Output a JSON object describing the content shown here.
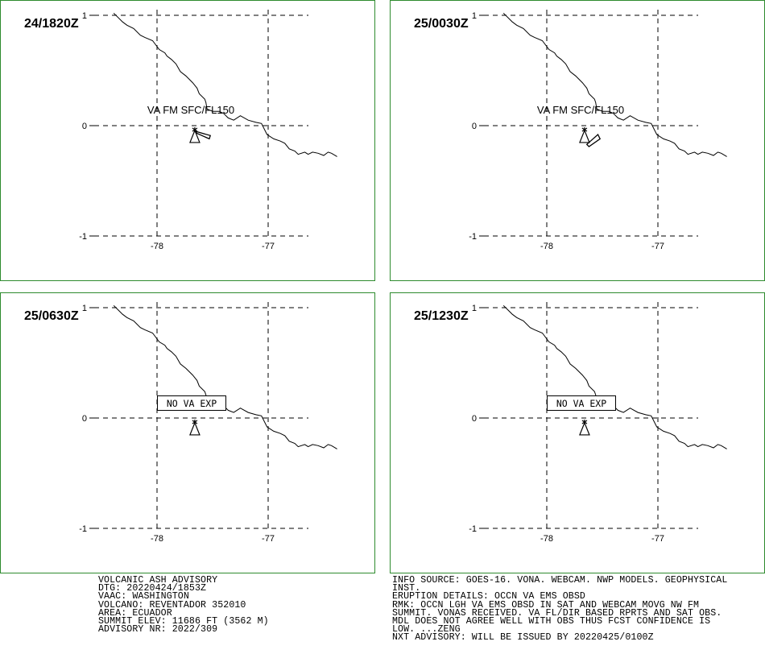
{
  "panels": [
    {
      "time_label": "24/1820Z",
      "mode": "cloud",
      "label": "VA FM SFC/FL150",
      "cloud": [
        [
          -77.66,
          -0.05
        ],
        [
          -77.52,
          -0.09
        ],
        [
          -77.53,
          -0.12
        ],
        [
          -77.64,
          -0.07
        ]
      ]
    },
    {
      "time_label": "25/0030Z",
      "mode": "cloud",
      "label": "VA FM SFC/FL150",
      "cloud": [
        [
          -77.64,
          -0.17
        ],
        [
          -77.54,
          -0.08
        ],
        [
          -77.52,
          -0.12
        ],
        [
          -77.62,
          -0.19
        ]
      ]
    },
    {
      "time_label": "25/0630Z",
      "mode": "box",
      "label": "NO VA EXP"
    },
    {
      "time_label": "25/1230Z",
      "mode": "box",
      "label": "NO VA EXP"
    }
  ],
  "axes": {
    "lat_ticks": [
      {
        "value": 1,
        "label": "1"
      },
      {
        "value": 0,
        "label": "0"
      },
      {
        "value": -1,
        "label": "-1"
      }
    ],
    "lon_ticks": [
      {
        "value": -78,
        "label": "-78"
      },
      {
        "value": -77,
        "label": "-77"
      }
    ],
    "lat_range": [
      -1,
      1
    ],
    "lon_range": [
      -78.0,
      -76.6
    ]
  },
  "volcano": {
    "lon": -77.66,
    "lat": -0.08
  },
  "coastline": [
    [
      -78.39,
      1.02
    ],
    [
      -78.31,
      0.94
    ],
    [
      -78.27,
      0.91
    ],
    [
      -78.21,
      0.88
    ],
    [
      -78.15,
      0.82
    ],
    [
      -78.11,
      0.8
    ],
    [
      -78.04,
      0.77
    ],
    [
      -77.98,
      0.69
    ],
    [
      -77.93,
      0.66
    ],
    [
      -77.91,
      0.63
    ],
    [
      -77.87,
      0.6
    ],
    [
      -77.83,
      0.56
    ],
    [
      -77.79,
      0.49
    ],
    [
      -77.74,
      0.45
    ],
    [
      -77.68,
      0.39
    ],
    [
      -77.64,
      0.34
    ],
    [
      -77.62,
      0.29
    ],
    [
      -77.57,
      0.24
    ],
    [
      -77.56,
      0.21
    ],
    [
      -77.55,
      0.15
    ],
    [
      -77.5,
      0.13
    ],
    [
      -77.44,
      0.13
    ],
    [
      -77.4,
      0.11
    ],
    [
      -77.36,
      0.07
    ],
    [
      -77.31,
      0.05
    ],
    [
      -77.25,
      0.09
    ],
    [
      -77.18,
      0.05
    ],
    [
      -77.11,
      0.03
    ],
    [
      -77.06,
      0.02
    ],
    [
      -77.01,
      -0.08
    ],
    [
      -76.95,
      -0.12
    ],
    [
      -76.89,
      -0.14
    ],
    [
      -76.85,
      -0.16
    ],
    [
      -76.81,
      -0.21
    ],
    [
      -76.76,
      -0.23
    ],
    [
      -76.73,
      -0.26
    ],
    [
      -76.67,
      -0.24
    ],
    [
      -76.64,
      -0.26
    ],
    [
      -76.6,
      -0.24
    ],
    [
      -76.55,
      -0.25
    ],
    [
      -76.5,
      -0.27
    ],
    [
      -76.46,
      -0.24
    ],
    [
      -76.43,
      -0.25
    ],
    [
      -76.38,
      -0.28
    ]
  ],
  "advisory_left": [
    "VOLCANIC ASH ADVISORY",
    "DTG: 20220424/1853Z",
    "VAAC: WASHINGTON",
    "VOLCANO: REVENTADOR 352010",
    "AREA: ECUADOR",
    "SUMMIT ELEV: 11686 FT (3562 M)",
    "ADVISORY NR: 2022/309"
  ],
  "advisory_right": [
    "INFO SOURCE: GOES-16. VONA. WEBCAM. NWP MODELS. GEOPHYSICAL",
    "INST.",
    "ERUPTION DETAILS: OCCN VA EMS OBSD",
    "RMK: OCCN LGH VA EMS OBSD IN SAT AND WEBCAM MOVG NW FM",
    "SUMMIT. VONAS RECEIVED. VA FL/DIR BASED RPRTS AND SAT OBS.",
    "MDL DOES NOT AGREE WELL WITH OBS THUS FCST CONFIDENCE IS",
    "LOW. ...ZENG",
    "NXT ADVISORY: WILL BE ISSUED BY 20220425/0100Z"
  ],
  "colors": {
    "frame": "#2e8b2e",
    "ink": "#000000",
    "background": "#ffffff"
  }
}
